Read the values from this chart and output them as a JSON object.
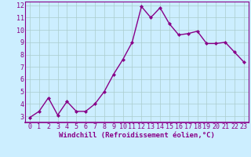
{
  "x": [
    0,
    1,
    2,
    3,
    4,
    5,
    6,
    7,
    8,
    9,
    10,
    11,
    12,
    13,
    14,
    15,
    16,
    17,
    18,
    19,
    20,
    21,
    22,
    23
  ],
  "y": [
    2.9,
    3.4,
    4.5,
    3.1,
    4.2,
    3.4,
    3.4,
    4.0,
    5.0,
    6.4,
    7.6,
    9.0,
    11.9,
    11.0,
    11.8,
    10.5,
    9.6,
    9.7,
    9.9,
    8.9,
    8.9,
    9.0,
    8.2,
    7.4
  ],
  "line_color": "#880088",
  "marker": "D",
  "marker_size": 2.0,
  "bg_color": "#cceeff",
  "grid_color": "#aacccc",
  "axis_bg": "#cceeff",
  "xlabel": "Windchill (Refroidissement éolien,°C)",
  "xlim_min": -0.5,
  "xlim_max": 23.5,
  "ylim_min": 2.5,
  "ylim_max": 12.3,
  "xticks": [
    0,
    1,
    2,
    3,
    4,
    5,
    6,
    7,
    8,
    9,
    10,
    11,
    12,
    13,
    14,
    15,
    16,
    17,
    18,
    19,
    20,
    21,
    22,
    23
  ],
  "yticks": [
    3,
    4,
    5,
    6,
    7,
    8,
    9,
    10,
    11,
    12
  ],
  "xlabel_fontsize": 6.5,
  "tick_fontsize": 6.0,
  "tick_color": "#880088",
  "axis_label_color": "#880088",
  "spine_color": "#880088",
  "linewidth": 1.0
}
